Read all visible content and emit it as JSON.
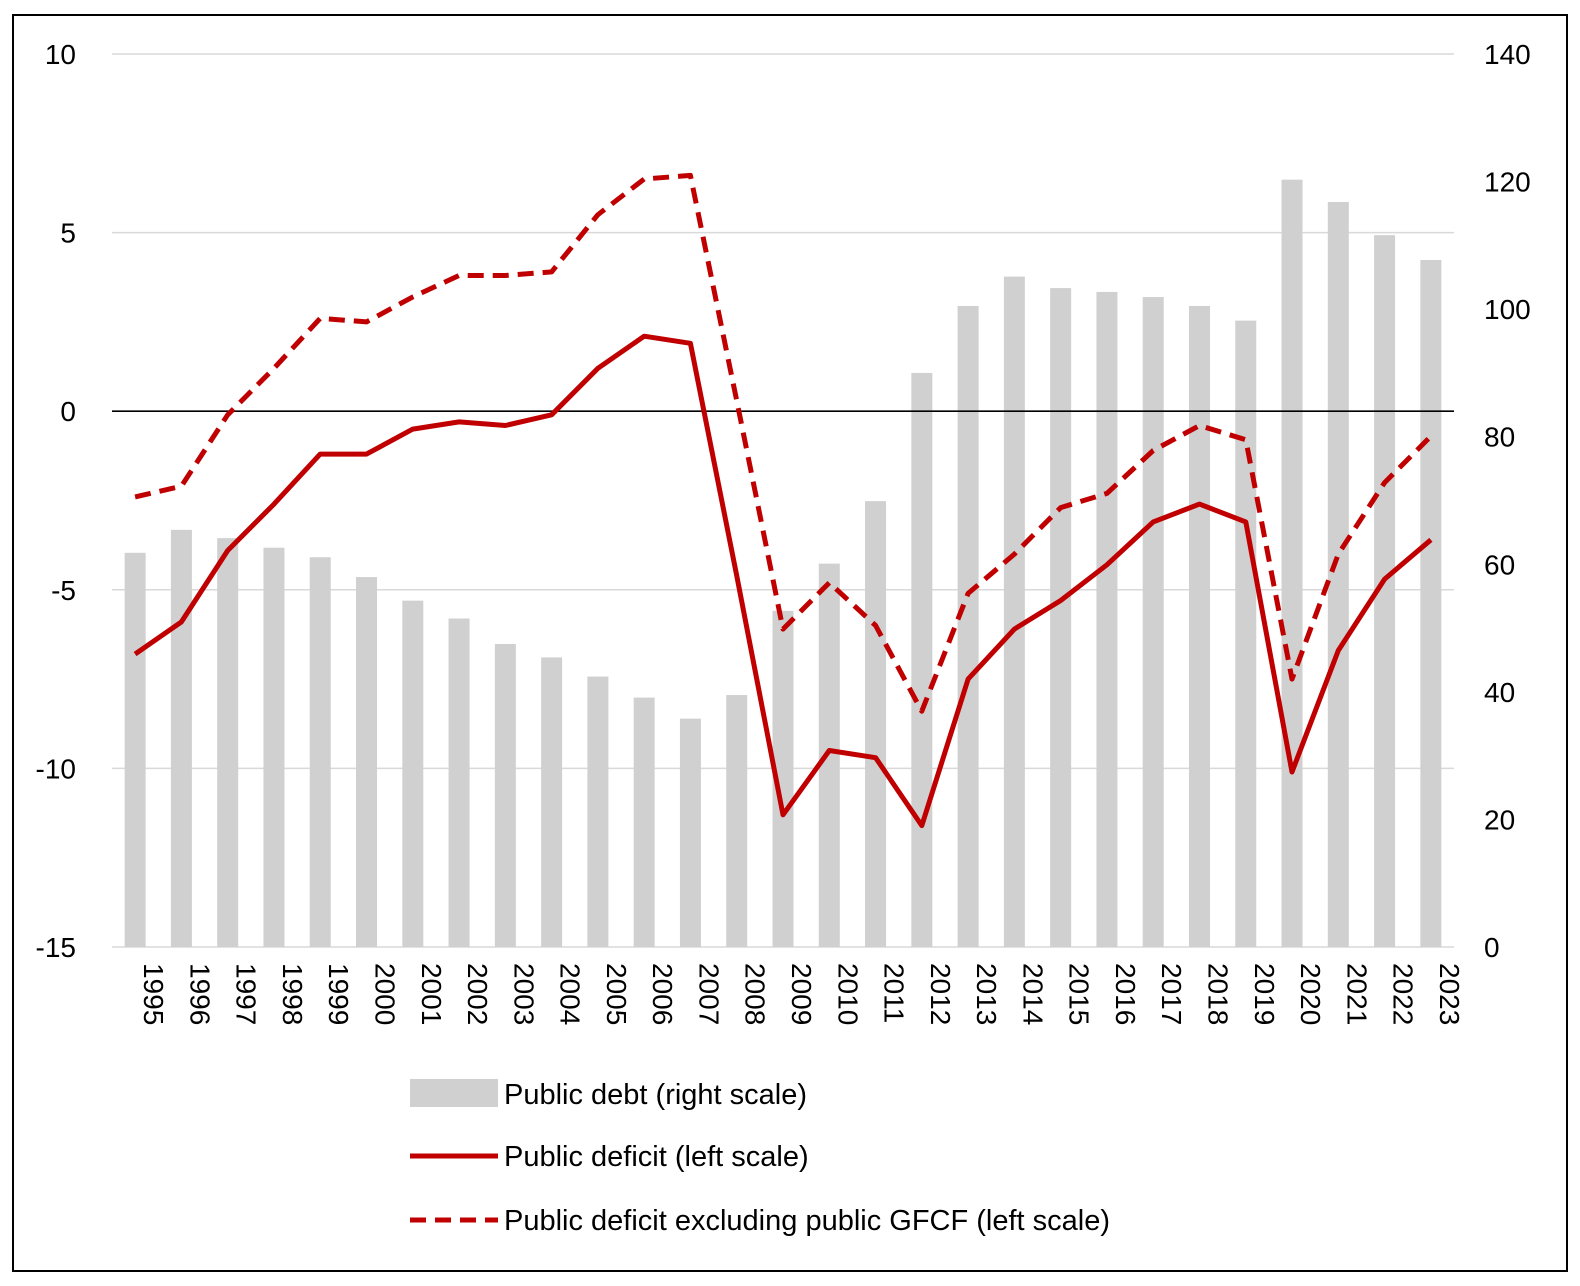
{
  "chart_data": {
    "type": "bar+line",
    "title": "",
    "years": [
      "1995",
      "1996",
      "1997",
      "1998",
      "1999",
      "2000",
      "2001",
      "2002",
      "2003",
      "2004",
      "2005",
      "2006",
      "2007",
      "2008",
      "2009",
      "2010",
      "2011",
      "2012",
      "2013",
      "2014",
      "2015",
      "2016",
      "2017",
      "2018",
      "2019",
      "2020",
      "2021",
      "2022",
      "2023"
    ],
    "left_axis": {
      "min": -15,
      "max": 10,
      "ticks": [
        "10",
        "5",
        "0",
        "-5",
        "-10",
        "-15"
      ]
    },
    "right_axis": {
      "min": 0,
      "max": 140,
      "ticks": [
        "140",
        "120",
        "100",
        "80",
        "60",
        "40",
        "20",
        "0"
      ]
    },
    "series": [
      {
        "name": "Public debt (right scale)",
        "kind": "bar",
        "axis": "right",
        "color": "#d0d0d0",
        "values": [
          61.8,
          65.4,
          64.1,
          62.6,
          61.1,
          58.0,
          54.3,
          51.5,
          47.5,
          45.4,
          42.4,
          39.1,
          35.8,
          39.5,
          52.7,
          60.1,
          69.9,
          90.0,
          100.5,
          105.1,
          103.3,
          102.7,
          101.9,
          100.5,
          98.2,
          120.3,
          116.8,
          111.6,
          107.7
        ]
      },
      {
        "name": "Public deficit (left scale)",
        "kind": "line",
        "axis": "left",
        "color": "#c00000",
        "dash": "solid",
        "values": [
          -6.8,
          -5.9,
          -3.9,
          -2.6,
          -1.2,
          -1.2,
          -0.5,
          -0.3,
          -0.4,
          -0.1,
          1.2,
          2.1,
          1.9,
          -4.6,
          -11.3,
          -9.5,
          -9.7,
          -11.6,
          -7.5,
          -6.1,
          -5.3,
          -4.3,
          -3.1,
          -2.6,
          -3.1,
          -10.1,
          -6.7,
          -4.7,
          -3.6
        ]
      },
      {
        "name": "Public deficit excluding public GFCF (left scale)",
        "kind": "line",
        "axis": "left",
        "color": "#c00000",
        "dash": "dashed",
        "values": [
          -2.4,
          -2.1,
          -0.1,
          1.2,
          2.6,
          2.5,
          3.2,
          3.8,
          3.8,
          3.9,
          5.5,
          6.5,
          6.6,
          0.3,
          -6.1,
          -4.8,
          -6.0,
          -8.4,
          -5.1,
          -4.0,
          -2.7,
          -2.3,
          -1.1,
          -0.4,
          -0.8,
          -7.5,
          -4.0,
          -2.0,
          -0.7
        ]
      }
    ],
    "grid": true,
    "zero_line": true,
    "legend": "bottom-center"
  }
}
